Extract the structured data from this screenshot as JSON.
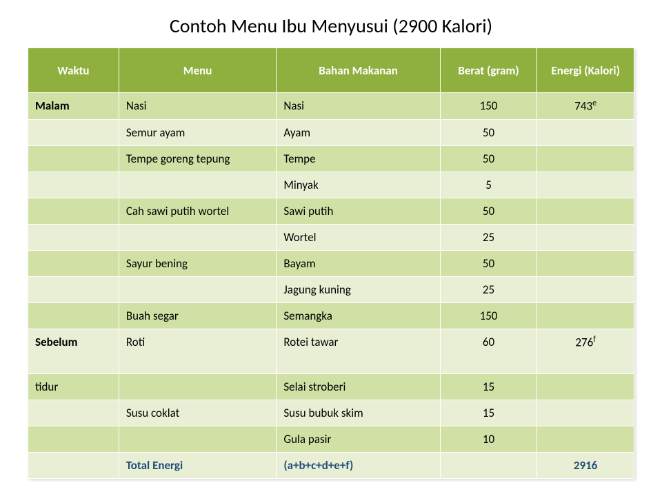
{
  "title": "Contoh Menu Ibu Menyusui (2900 Kalori)",
  "colors": {
    "header_bg": "#8fb03e",
    "band_dark": "#d1e0a5",
    "band_light": "#e9efd4",
    "total_text": "#1f4e79"
  },
  "columns": [
    {
      "key": "waktu",
      "label": "Waktu",
      "width": "15%"
    },
    {
      "key": "menu",
      "label": "Menu",
      "width": "26%"
    },
    {
      "key": "bahan",
      "label": "Bahan Makanan",
      "width": "27%"
    },
    {
      "key": "berat",
      "label": "Berat (gram)",
      "width": "16%",
      "align": "center"
    },
    {
      "key": "energi",
      "label": "Energi (Kalori)",
      "width": "16%",
      "align": "center"
    }
  ],
  "rows": [
    {
      "band": "dark",
      "waktu": "Malam",
      "menu": "Nasi",
      "bahan": "Nasi",
      "berat": "150",
      "energi": "743",
      "energi_sup": "e",
      "waktu_bold": true
    },
    {
      "band": "light",
      "waktu": "",
      "menu": "Semur ayam",
      "bahan": "Ayam",
      "berat": "50",
      "energi": ""
    },
    {
      "band": "dark",
      "waktu": "",
      "menu": "Tempe goreng tepung",
      "bahan": "Tempe",
      "berat": "50",
      "energi": ""
    },
    {
      "band": "light",
      "waktu": "",
      "menu": "",
      "bahan": "Minyak",
      "berat": "5",
      "energi": ""
    },
    {
      "band": "dark",
      "waktu": "",
      "menu": "Cah sawi putih wortel",
      "bahan": "Sawi putih",
      "berat": "50",
      "energi": ""
    },
    {
      "band": "light",
      "waktu": "",
      "menu": "",
      "bahan": "Wortel",
      "berat": "25",
      "energi": ""
    },
    {
      "band": "dark",
      "waktu": "",
      "menu": "Sayur bening",
      "bahan": "Bayam",
      "berat": "50",
      "energi": ""
    },
    {
      "band": "light",
      "waktu": "",
      "menu": "",
      "bahan": "Jagung kuning",
      "berat": "25",
      "energi": ""
    },
    {
      "band": "dark",
      "waktu": "",
      "menu": "Buah segar",
      "bahan": "Semangka",
      "berat": "150",
      "energi": ""
    },
    {
      "band": "light",
      "waktu": "Sebelum",
      "menu": "Roti",
      "bahan": "Rotei tawar",
      "berat": "60",
      "energi": "276",
      "energi_sup": "f",
      "waktu_bold": true,
      "tall": true
    },
    {
      "band": "dark",
      "waktu": "tidur",
      "menu": "",
      "bahan": "Selai stroberi",
      "berat": "15",
      "energi": ""
    },
    {
      "band": "light",
      "waktu": "",
      "menu": "Susu coklat",
      "bahan": "Susu bubuk skim",
      "berat": "15",
      "energi": ""
    },
    {
      "band": "dark",
      "waktu": "",
      "menu": "",
      "bahan": "Gula pasir",
      "berat": "10",
      "energi": ""
    }
  ],
  "total_row": {
    "band": "light",
    "menu_label": "Total Energi",
    "bahan_label": "(a+b+c+d+e+f)",
    "energi": "2916"
  }
}
